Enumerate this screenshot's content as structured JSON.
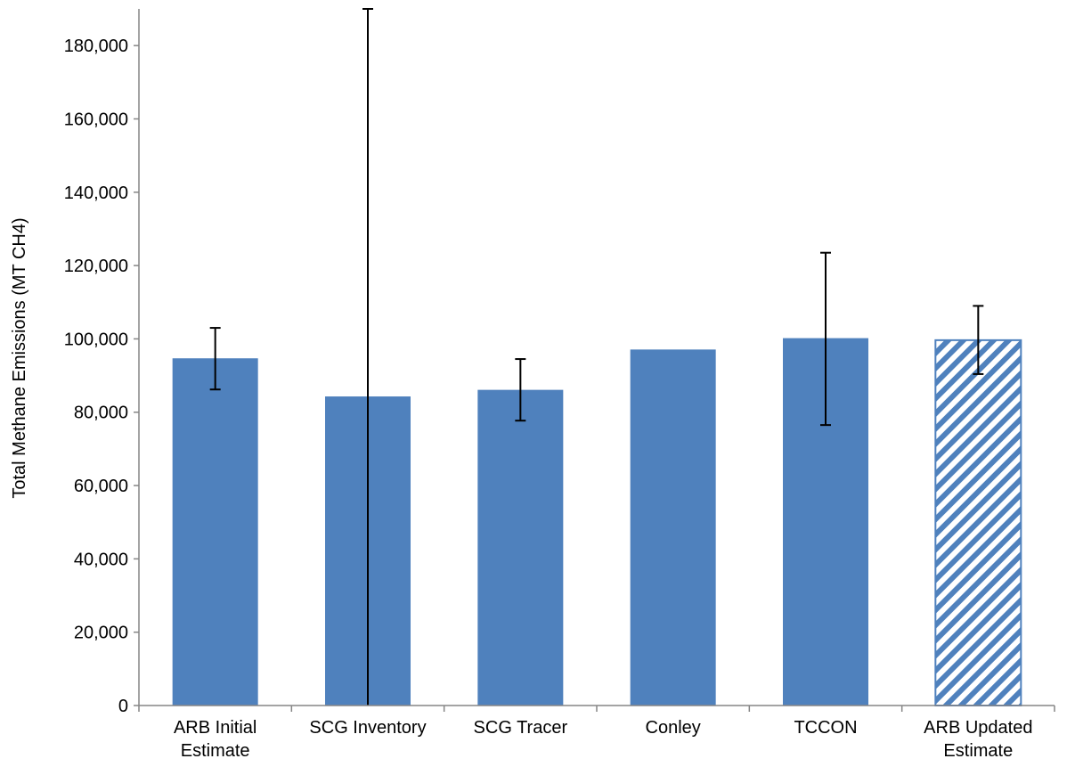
{
  "chart_data": {
    "type": "bar",
    "title": "",
    "xlabel": "",
    "ylabel": "Total Methane Emissions (MT CH4)",
    "ylim": [
      0,
      190000
    ],
    "yticks": [
      0,
      20000,
      40000,
      60000,
      80000,
      100000,
      120000,
      140000,
      160000,
      180000
    ],
    "ytick_labels": [
      "0",
      "20,000",
      "40,000",
      "60,000",
      "80,000",
      "100,000",
      "120,000",
      "140,000",
      "160,000",
      "180,000"
    ],
    "grid": false,
    "legend": "none",
    "categories": [
      [
        "ARB Initial",
        "Estimate"
      ],
      [
        "SCG Inventory"
      ],
      [
        "SCG Tracer"
      ],
      [
        "Conley"
      ],
      [
        "TCCON"
      ],
      [
        "ARB Updated",
        "Estimate"
      ]
    ],
    "values": [
      94700,
      84300,
      86100,
      97100,
      100200,
      99650
    ],
    "error_low": [
      86200,
      0,
      77700,
      null,
      76500,
      90400
    ],
    "error_high": [
      103000,
      190000,
      94500,
      null,
      123500,
      109000
    ],
    "hatched": [
      false,
      false,
      false,
      false,
      false,
      true
    ],
    "colors": {
      "bar": "#4f81bd",
      "axis": "#868686",
      "error": "#000000"
    }
  }
}
